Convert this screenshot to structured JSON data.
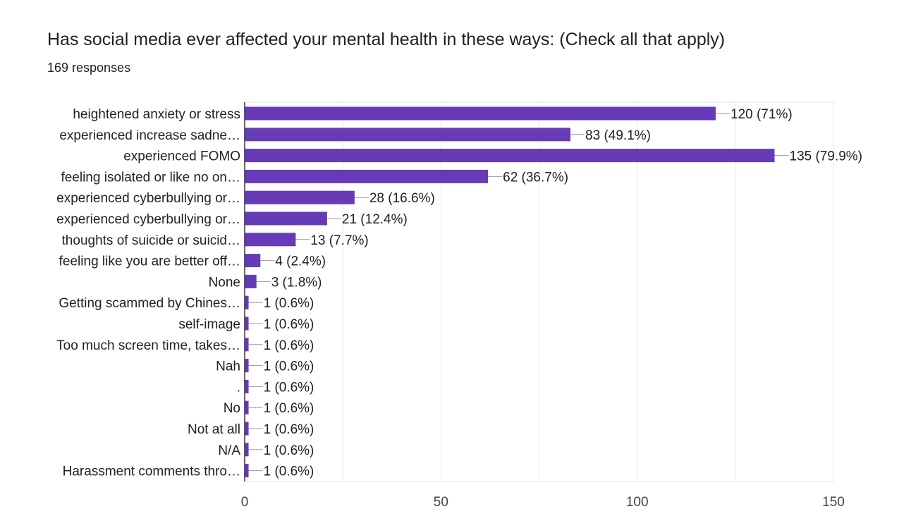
{
  "header": {
    "title": "Has social media ever affected your mental health in these ways: (Check all that apply)",
    "responses": "169 responses"
  },
  "colors": {
    "bar": "#673ab7",
    "grid": "#e6e6e6",
    "axis": "#333333"
  },
  "chart_data": {
    "type": "bar",
    "orientation": "horizontal",
    "title": "Has social media ever affected your mental health in these ways: (Check all that apply)",
    "subtitle": "169 responses",
    "categories": [
      "heightened anxiety or stress",
      "experienced increase sadne…",
      "experienced FOMO",
      "feeling isolated or like no on…",
      "experienced cyberbullying or…",
      "experienced cyberbullying or…",
      "thoughts of suicide or suicid…",
      "feeling like you are better off…",
      "None",
      "Getting scammed by Chines…",
      "self-image",
      "Too much screen time, takes…",
      "Nah",
      ".",
      "No",
      "Not at all",
      "N/A",
      "Harassment comments thro…"
    ],
    "values": [
      120,
      83,
      135,
      62,
      28,
      21,
      13,
      4,
      3,
      1,
      1,
      1,
      1,
      1,
      1,
      1,
      1,
      1
    ],
    "value_labels": [
      "120 (71%)",
      "83 (49.1%)",
      "135 (79.9%)",
      "62 (36.7%)",
      "28 (16.6%)",
      "21 (12.4%)",
      "13 (7.7%)",
      "4 (2.4%)",
      "3 (1.8%)",
      "1 (0.6%)",
      "1 (0.6%)",
      "1 (0.6%)",
      "1 (0.6%)",
      "1 (0.6%)",
      "1 (0.6%)",
      "1 (0.6%)",
      "1 (0.6%)",
      "1 (0.6%)"
    ],
    "xticks": [
      "0",
      "50",
      "100",
      "150"
    ],
    "xlim": [
      0,
      150
    ],
    "grid": true,
    "legend": "none"
  }
}
